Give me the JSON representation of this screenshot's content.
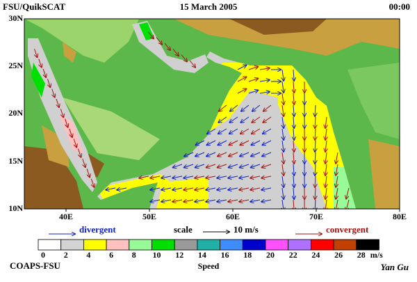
{
  "header": {
    "left": "FSU/QuikSCAT",
    "center": "15 March 2005",
    "right": "00:00"
  },
  "map": {
    "lat_labels": [
      "30N",
      "25N",
      "20N",
      "15N",
      "10N"
    ],
    "lon_labels": [
      "40E",
      "50E",
      "60E",
      "70E",
      "80E"
    ]
  },
  "legend": {
    "divergent": "divergent",
    "scale": "scale",
    "scale_value": "10 m/s",
    "convergent": "convergent"
  },
  "colorbar": {
    "labels": [
      0,
      2,
      4,
      6,
      8,
      10,
      12,
      14,
      16,
      18,
      20,
      22,
      24,
      26,
      28
    ],
    "unit": "m/s",
    "title": "Speed"
  },
  "footer": {
    "left": "COAPS-FSU",
    "right": "Yan Gu"
  }
}
